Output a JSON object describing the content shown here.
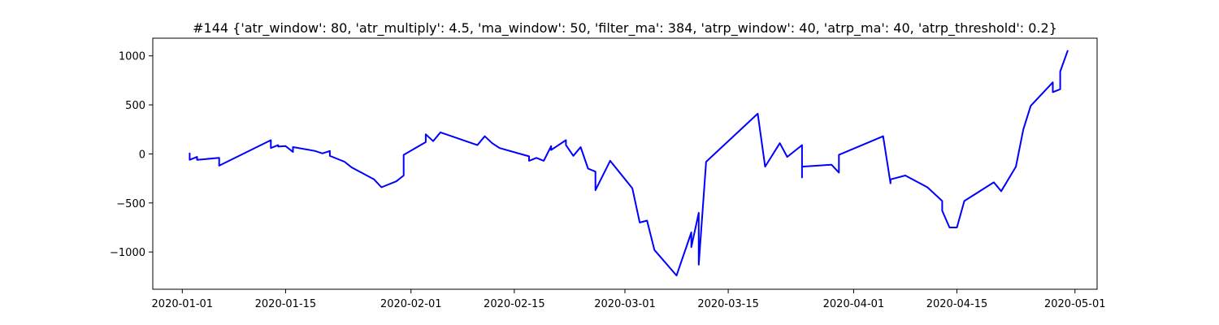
{
  "chart_data": {
    "type": "line",
    "title": "#144 {'atr_window': 80, 'atr_multiply': 4.5, 'ma_window': 50, 'filter_ma': 384, 'atrp_window': 40, 'atrp_ma': 40, 'atrp_threshold': 0.2}",
    "xlabel": "",
    "ylabel": "",
    "x_axis_type": "date",
    "xlim": [
      "2019-12-28",
      "2020-05-04"
    ],
    "ylim": [
      -1380,
      1180
    ],
    "xticks": [
      "2020-01-01",
      "2020-01-15",
      "2020-02-01",
      "2020-02-15",
      "2020-03-01",
      "2020-03-15",
      "2020-04-01",
      "2020-04-15",
      "2020-05-01"
    ],
    "yticks": [
      1000,
      500,
      0,
      -500,
      -1000
    ],
    "ytick_labels": [
      "1000",
      "500",
      "0",
      "−500",
      "−1000"
    ],
    "grid": false,
    "legend": "none",
    "series": [
      {
        "color": "#0000ff",
        "x": [
          "2020-01-02",
          "2020-01-02",
          "2020-01-02",
          "2020-01-02",
          "2020-01-02",
          "2020-01-03",
          "2020-01-03",
          "2020-01-06",
          "2020-01-06",
          "2020-01-13",
          "2020-01-13",
          "2020-01-14",
          "2020-01-14",
          "2020-01-15",
          "2020-01-16",
          "2020-01-16",
          "2020-01-19",
          "2020-01-20",
          "2020-01-21",
          "2020-01-21",
          "2020-01-22",
          "2020-01-23",
          "2020-01-24",
          "2020-01-27",
          "2020-01-28",
          "2020-01-30",
          "2020-01-31",
          "2020-01-31",
          "2020-02-03",
          "2020-02-03",
          "2020-02-04",
          "2020-02-05",
          "2020-02-10",
          "2020-02-11",
          "2020-02-12",
          "2020-02-13",
          "2020-02-17",
          "2020-02-17",
          "2020-02-18",
          "2020-02-19",
          "2020-02-20",
          "2020-02-20",
          "2020-02-22",
          "2020-02-22",
          "2020-02-23",
          "2020-02-24",
          "2020-02-25",
          "2020-02-26",
          "2020-02-26",
          "2020-02-28",
          "2020-03-02",
          "2020-03-03",
          "2020-03-04",
          "2020-03-05",
          "2020-03-08",
          "2020-03-10",
          "2020-03-10",
          "2020-03-11",
          "2020-03-11",
          "2020-03-12",
          "2020-03-19",
          "2020-03-20",
          "2020-03-22",
          "2020-03-23",
          "2020-03-25",
          "2020-03-25",
          "2020-03-25",
          "2020-03-29",
          "2020-03-30",
          "2020-03-30",
          "2020-04-05",
          "2020-04-06",
          "2020-04-06",
          "2020-04-08",
          "2020-04-11",
          "2020-04-13",
          "2020-04-13",
          "2020-04-14",
          "2020-04-15",
          "2020-04-16",
          "2020-04-20",
          "2020-04-21",
          "2020-04-23",
          "2020-04-24",
          "2020-04-25",
          "2020-04-28",
          "2020-04-28",
          "2020-04-29",
          "2020-04-29",
          "2020-04-30"
        ],
        "y": [
          5,
          -25,
          0,
          -40,
          -60,
          -30,
          -60,
          -40,
          -120,
          140,
          60,
          90,
          75,
          80,
          20,
          70,
          30,
          5,
          30,
          -20,
          -50,
          -80,
          -140,
          -260,
          -340,
          -280,
          -220,
          -10,
          120,
          200,
          130,
          220,
          90,
          180,
          110,
          60,
          -25,
          -70,
          -40,
          -70,
          80,
          40,
          140,
          90,
          -20,
          70,
          -150,
          -180,
          -370,
          -70,
          -350,
          -700,
          -680,
          -980,
          -1240,
          -800,
          -950,
          -600,
          -1130,
          -80,
          410,
          -130,
          110,
          -30,
          90,
          -240,
          -130,
          -110,
          -190,
          -10,
          180,
          -300,
          -260,
          -220,
          -340,
          -480,
          -580,
          -750,
          -750,
          -480,
          -290,
          -380,
          -130,
          250,
          490,
          730,
          630,
          660,
          840,
          1050
        ]
      }
    ]
  }
}
